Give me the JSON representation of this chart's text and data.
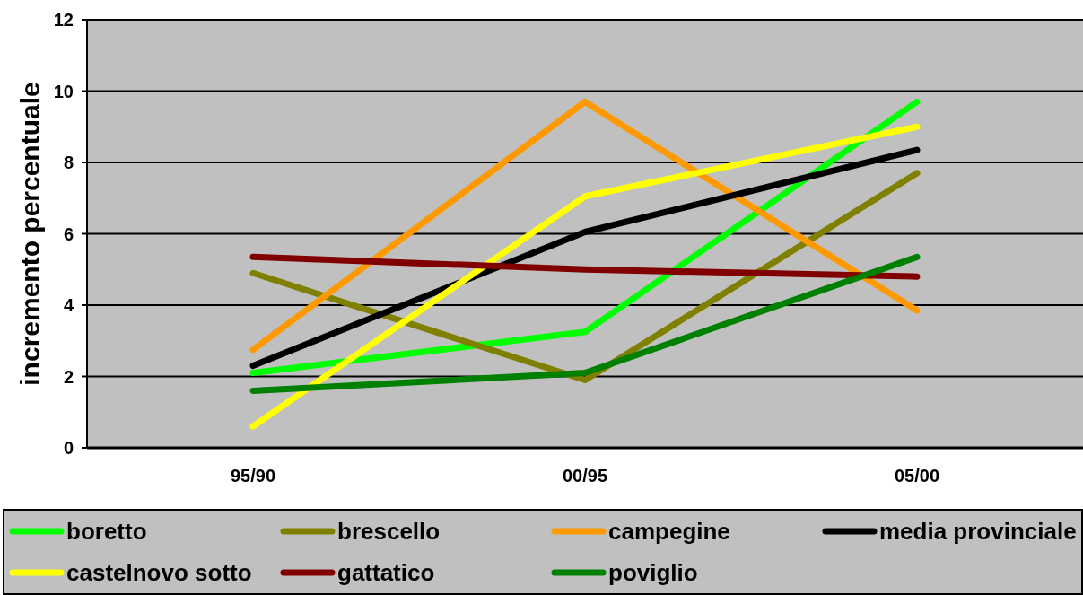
{
  "chart_data": {
    "type": "line",
    "ylabel": "incremento percentuale",
    "categories": [
      "95/90",
      "00/95",
      "05/00"
    ],
    "series": [
      {
        "name": "boretto",
        "color": "#00ff00",
        "values": [
          2.1,
          3.25,
          9.7
        ]
      },
      {
        "name": "brescello",
        "color": "#808000",
        "values": [
          4.9,
          1.9,
          7.7
        ]
      },
      {
        "name": "campegine",
        "color": "#ff9900",
        "values": [
          2.75,
          9.7,
          3.85
        ]
      },
      {
        "name": "media provinciale",
        "color": "#000000",
        "values": [
          2.3,
          6.05,
          8.35
        ]
      },
      {
        "name": "castelnovo sotto",
        "color": "#ffff00",
        "values": [
          0.6,
          7.05,
          9.0
        ]
      },
      {
        "name": "gattatico",
        "color": "#800000",
        "values": [
          5.35,
          5.0,
          4.8
        ]
      },
      {
        "name": "poviglio",
        "color": "#008000",
        "values": [
          1.6,
          2.1,
          5.35
        ]
      }
    ],
    "ylim": [
      0,
      12
    ],
    "yticks": [
      0,
      2,
      4,
      6,
      8,
      10,
      12
    ],
    "grid": "y",
    "legend": "bottom",
    "marker": "none",
    "line_style": "solid"
  }
}
